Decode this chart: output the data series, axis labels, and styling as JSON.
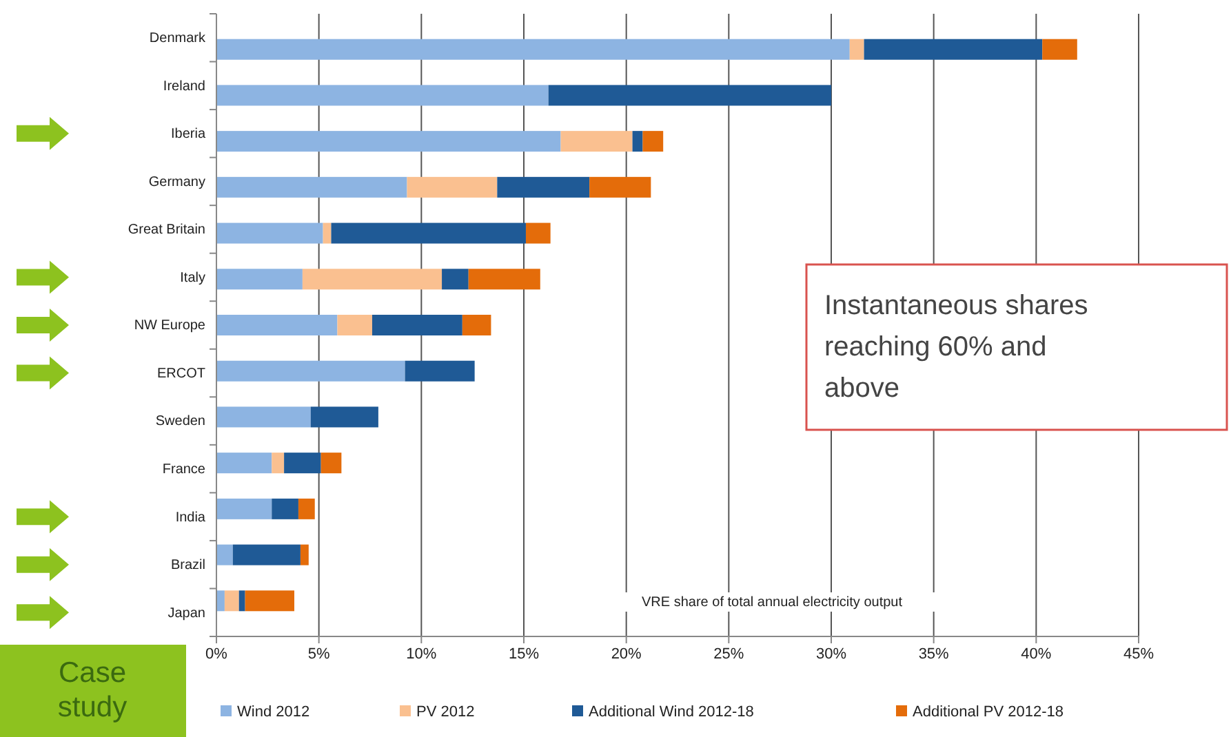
{
  "chart_data": {
    "type": "bar",
    "orientation": "horizontal",
    "stacked": true,
    "categories": [
      "Denmark",
      "Ireland",
      "Iberia",
      "Germany",
      "Great Britain",
      "Italy",
      "NW Europe",
      "ERCOT",
      "Sweden",
      "France",
      "India",
      "Brazil",
      "Japan"
    ],
    "series": [
      {
        "name": "Wind 2012",
        "color": "#8db4e2",
        "values": [
          30.9,
          16.2,
          16.8,
          9.3,
          5.2,
          4.2,
          5.9,
          9.2,
          4.6,
          2.7,
          2.7,
          0.8,
          0.4
        ]
      },
      {
        "name": "PV 2012",
        "color": "#fac090",
        "values": [
          0.7,
          0,
          3.5,
          4.4,
          0.4,
          6.8,
          1.7,
          0,
          0,
          0.6,
          0,
          0,
          0.7
        ]
      },
      {
        "name": "Additional Wind 2012-18",
        "color": "#1f5a96",
        "values": [
          8.7,
          13.8,
          0.5,
          4.5,
          9.5,
          1.3,
          4.4,
          3.4,
          3.3,
          1.8,
          1.3,
          3.3,
          0.3
        ]
      },
      {
        "name": "Additional PV 2012-18",
        "color": "#e46c0a",
        "values": [
          1.7,
          0,
          1.0,
          3.0,
          1.2,
          3.5,
          1.4,
          0,
          0,
          1.0,
          0.8,
          0.4,
          2.4
        ]
      }
    ],
    "xlim": [
      0,
      45
    ],
    "xticks": [
      {
        "value": 0,
        "label": "0%"
      },
      {
        "value": 5,
        "label": "5%"
      },
      {
        "value": 10,
        "label": "10%"
      },
      {
        "value": 15,
        "label": "15%"
      },
      {
        "value": 20,
        "label": "20%"
      },
      {
        "value": 25,
        "label": "25%"
      },
      {
        "value": 30,
        "label": "30%"
      },
      {
        "value": 35,
        "label": "35%"
      },
      {
        "value": 40,
        "label": "40%"
      },
      {
        "value": 45,
        "label": "45%"
      }
    ],
    "xlabel": "VRE share of total annual electricity output",
    "grid": "x",
    "legend": "bottom",
    "annotations": [
      "Instantaneous shares reaching 60% and above",
      "Case study"
    ]
  }
}
